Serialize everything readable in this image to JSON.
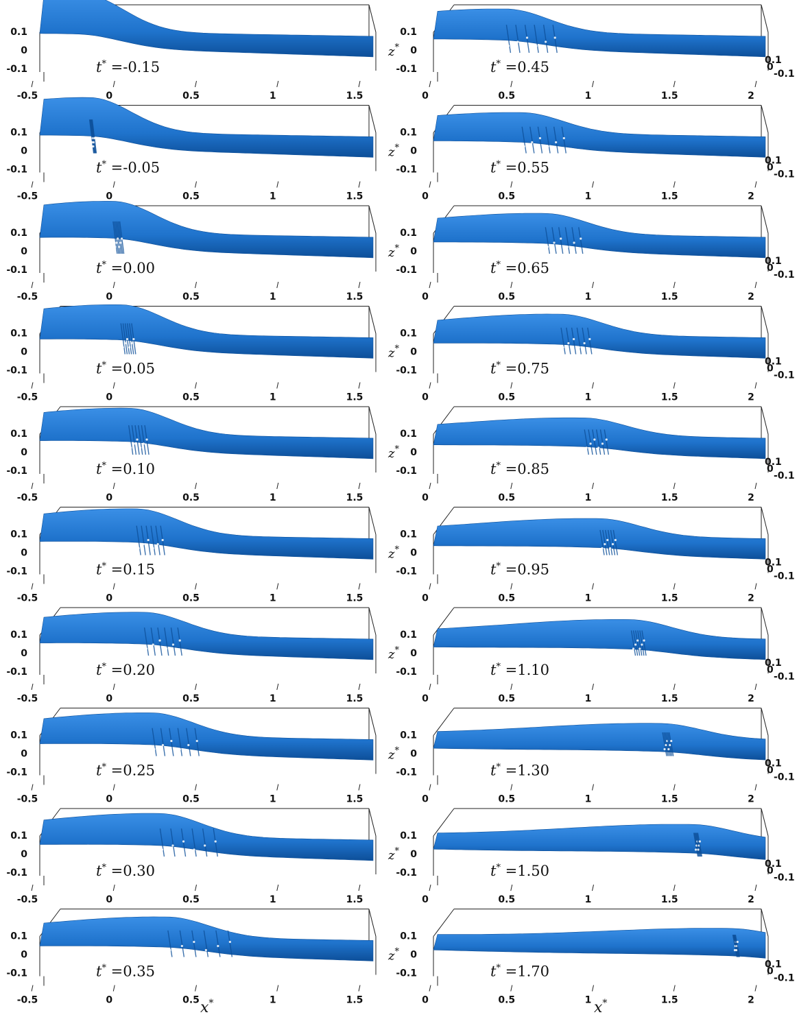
{
  "chart_data": {
    "type": "surface-3d",
    "panel_rows": 10,
    "panel_columns": 2,
    "xlabel": "x*",
    "zlabel": "z*",
    "columns": [
      {
        "xlim": [
          -0.5,
          1.6
        ],
        "x_ticks": [
          "-0.5",
          "0",
          "0.5",
          "1",
          "1.5"
        ],
        "z_ticks": [
          "0.1",
          "0",
          "-0.1"
        ],
        "y_ticks": [],
        "z_axis_label": "",
        "panels": [
          {
            "t_label": "=-0.15",
            "crest_x": -0.25,
            "crest_z": 0.13,
            "breaking_length": 0.0
          },
          {
            "t_label": "=-0.05",
            "crest_x": -0.2,
            "crest_z": 0.12,
            "breaking_length": 0.02
          },
          {
            "t_label": "=0.00",
            "crest_x": -0.05,
            "crest_z": 0.11,
            "breaking_length": 0.05
          },
          {
            "t_label": "=0.05",
            "crest_x": 0.0,
            "crest_z": 0.1,
            "breaking_length": 0.08
          },
          {
            "t_label": "=0.10",
            "crest_x": 0.05,
            "crest_z": 0.09,
            "breaking_length": 0.12
          },
          {
            "t_label": "=0.15",
            "crest_x": 0.1,
            "crest_z": 0.09,
            "breaking_length": 0.18
          },
          {
            "t_label": "=0.20",
            "crest_x": 0.15,
            "crest_z": 0.08,
            "breaking_length": 0.25
          },
          {
            "t_label": "=0.25",
            "crest_x": 0.2,
            "crest_z": 0.08,
            "breaking_length": 0.32
          },
          {
            "t_label": "=0.30",
            "crest_x": 0.25,
            "crest_z": 0.08,
            "breaking_length": 0.4
          },
          {
            "t_label": "=0.35",
            "crest_x": 0.3,
            "crest_z": 0.07,
            "breaking_length": 0.45
          }
        ]
      },
      {
        "xlim": [
          0,
          2.1
        ],
        "x_ticks": [
          "0",
          "0.5",
          "1",
          "1.5",
          "2"
        ],
        "z_ticks": [
          "0.1",
          "0",
          "-0.1"
        ],
        "y_ticks": [
          "0.1",
          "0",
          "-0.1"
        ],
        "z_axis_label": "z*",
        "panels": [
          {
            "t_label": "=0.45",
            "crest_x": 0.45,
            "crest_z": 0.08,
            "breaking_length": 0.35
          },
          {
            "t_label": "=0.55",
            "crest_x": 0.55,
            "crest_z": 0.07,
            "breaking_length": 0.3
          },
          {
            "t_label": "=0.65",
            "crest_x": 0.7,
            "crest_z": 0.07,
            "breaking_length": 0.25
          },
          {
            "t_label": "=0.75",
            "crest_x": 0.8,
            "crest_z": 0.07,
            "breaking_length": 0.2
          },
          {
            "t_label": "=0.85",
            "crest_x": 0.95,
            "crest_z": 0.06,
            "breaking_length": 0.15
          },
          {
            "t_label": "=0.95",
            "crest_x": 1.05,
            "crest_z": 0.06,
            "breaking_length": 0.1
          },
          {
            "t_label": "=1.10",
            "crest_x": 1.25,
            "crest_z": 0.06,
            "breaking_length": 0.08
          },
          {
            "t_label": "=1.30",
            "crest_x": 1.45,
            "crest_z": 0.05,
            "breaking_length": 0.05
          },
          {
            "t_label": "=1.50",
            "crest_x": 1.65,
            "crest_z": 0.05,
            "breaking_length": 0.03
          },
          {
            "t_label": "=1.70",
            "crest_x": 1.9,
            "crest_z": 0.04,
            "breaking_length": 0.02
          }
        ]
      }
    ],
    "surface_color": "#1f73cc",
    "surface_dark": "#0d4f99",
    "surface_light": "#3a8fe6"
  }
}
